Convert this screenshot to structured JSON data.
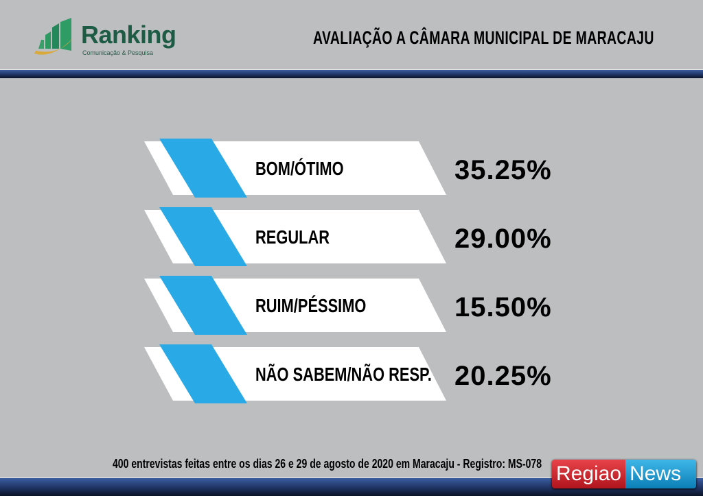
{
  "header": {
    "logo": {
      "name": "Ranking",
      "tagline": "Comunicação & Pesquisa"
    },
    "title": "AVALIAÇÃO A CÂMARA MUNICIPAL DE MARACAJU"
  },
  "chart_data": {
    "type": "bar",
    "title": "AVALIAÇÃO A CÂMARA MUNICIPAL DE MARACAJU",
    "categories": [
      "BOM/ÓTIMO",
      "REGULAR",
      "RUIM/PÉSSIMO",
      "NÃO SABEM/NÃO RESP."
    ],
    "values": [
      35.25,
      29.0,
      15.5,
      20.25
    ],
    "value_labels": [
      "35.25%",
      "29.00%",
      "15.50%",
      "20.25%"
    ],
    "colors": {
      "accent": "#29a9e6",
      "panel": "#ffffff",
      "background": "#bdbec0"
    }
  },
  "footer": {
    "note": "400 entrevistas feitas entre os  dias 26 e 29 de agosto de 2020 em Maracaju - Registro:  MS-078"
  },
  "watermark": {
    "part1": "Regiao",
    "part2": "News"
  }
}
